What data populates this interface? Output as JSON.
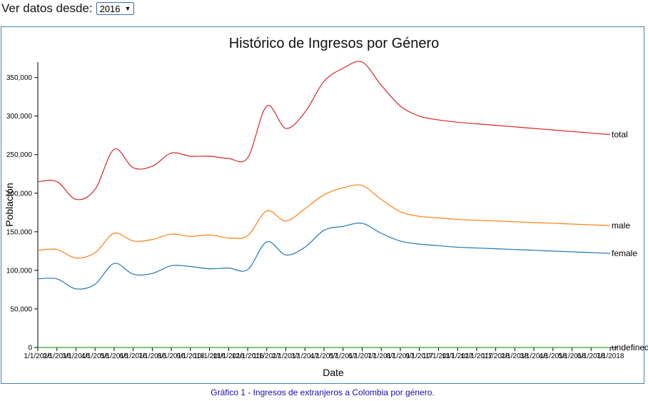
{
  "controls": {
    "label": "Ver datos desde:",
    "selected_year": "2016"
  },
  "caption": "Gráfico 1 - Ingresos de extranjeros a Colombia por género.",
  "colors": {
    "total": "#d62728",
    "male": "#ff7f0e",
    "female": "#1f77b4",
    "undefined": "#2ca02c",
    "frame": "#4682b4",
    "caption": "#1a0dab"
  },
  "chart_data": {
    "type": "line",
    "title": "Histórico de Ingresos por Género",
    "xlabel": "Date",
    "ylabel": "Población",
    "ylim": [
      0,
      370000
    ],
    "y_ticks": [
      0,
      50000,
      100000,
      150000,
      200000,
      250000,
      300000,
      350000
    ],
    "y_tick_labels": [
      "0",
      "50,000",
      "100,000",
      "150,000",
      "200,000",
      "250,000",
      "300,000",
      "350,000"
    ],
    "x": [
      "1/1/2016",
      "2/1/2016",
      "3/1/2016",
      "4/1/2016",
      "5/1/2016",
      "6/1/2016",
      "7/1/2016",
      "8/1/2016",
      "9/1/2016",
      "10/1/2016",
      "11/1/2016",
      "12/1/2016",
      "1/1/2017",
      "2/1/2017",
      "3/1/2017",
      "4/1/2017",
      "5/1/2017",
      "6/1/2017",
      "7/1/2017",
      "8/1/2017",
      "9/1/2017",
      "10/1/2017",
      "11/1/2017",
      "12/1/2017",
      "1/1/2018",
      "2/1/2018",
      "3/1/2018",
      "4/1/2018",
      "5/1/2018",
      "6/1/2018",
      "7/1/2018"
    ],
    "x_tick_labels": [
      "1/1/2016",
      "2/1/2016",
      "3/1/2016",
      "4/1/2016",
      "5/1/2016",
      "6/1/2016",
      "7/1/2016",
      "8/1/2016",
      "9/1/2016",
      "10/1/2016",
      "11/1/2016",
      "12/1/2016",
      "1/1/2017",
      "2/1/2017",
      "3/1/2017",
      "4/1/2017",
      "5/1/2017",
      "6/1/2017",
      "7/1/2017",
      "8/1/2017",
      "9/1/2017",
      "10/1/2017",
      "11/1/2017",
      "12/1/2017",
      "1/1/2018",
      "2/1/2018",
      "3/1/2018",
      "4/1/2018",
      "5/1/2018",
      "6/1/2018",
      "7/1/2018"
    ],
    "series": [
      {
        "name": "total",
        "color": "#d62728",
        "values": [
          215000,
          215000,
          192000,
          205000,
          257000,
          233000,
          235000,
          252000,
          248000,
          248000,
          245000,
          246000,
          313000,
          284000,
          305000,
          345000,
          362000,
          370000,
          340000,
          313000,
          300000,
          295000,
          292000,
          290000,
          288000,
          286000,
          284000,
          282000,
          280000,
          278000,
          276000
        ]
      },
      {
        "name": "male",
        "color": "#ff7f0e",
        "values": [
          126000,
          127000,
          116000,
          123000,
          148000,
          138000,
          140000,
          147000,
          144000,
          146000,
          142000,
          145000,
          177000,
          164000,
          180000,
          198000,
          207000,
          210000,
          192000,
          176000,
          170000,
          168000,
          166000,
          165000,
          164000,
          163000,
          162000,
          161000,
          160000,
          159000,
          158000
        ]
      },
      {
        "name": "female",
        "color": "#1f77b4",
        "values": [
          89000,
          89000,
          76000,
          82000,
          109000,
          95000,
          96000,
          106000,
          105000,
          102000,
          103000,
          101000,
          137000,
          120000,
          130000,
          152000,
          157000,
          161000,
          148000,
          138000,
          134000,
          132000,
          130000,
          129000,
          128000,
          127000,
          126000,
          125000,
          124000,
          123000,
          122000
        ]
      },
      {
        "name": "undefined",
        "color": "#2ca02c",
        "values": [
          0,
          0,
          0,
          0,
          0,
          0,
          0,
          0,
          0,
          0,
          0,
          0,
          0,
          0,
          0,
          0,
          0,
          0,
          0,
          0,
          0,
          0,
          0,
          0,
          0,
          0,
          0,
          0,
          0,
          0,
          0
        ]
      }
    ],
    "end_labels": [
      "total",
      "male",
      "female",
      "undefined"
    ],
    "grid": false,
    "legend": "inline labels at line ends"
  }
}
